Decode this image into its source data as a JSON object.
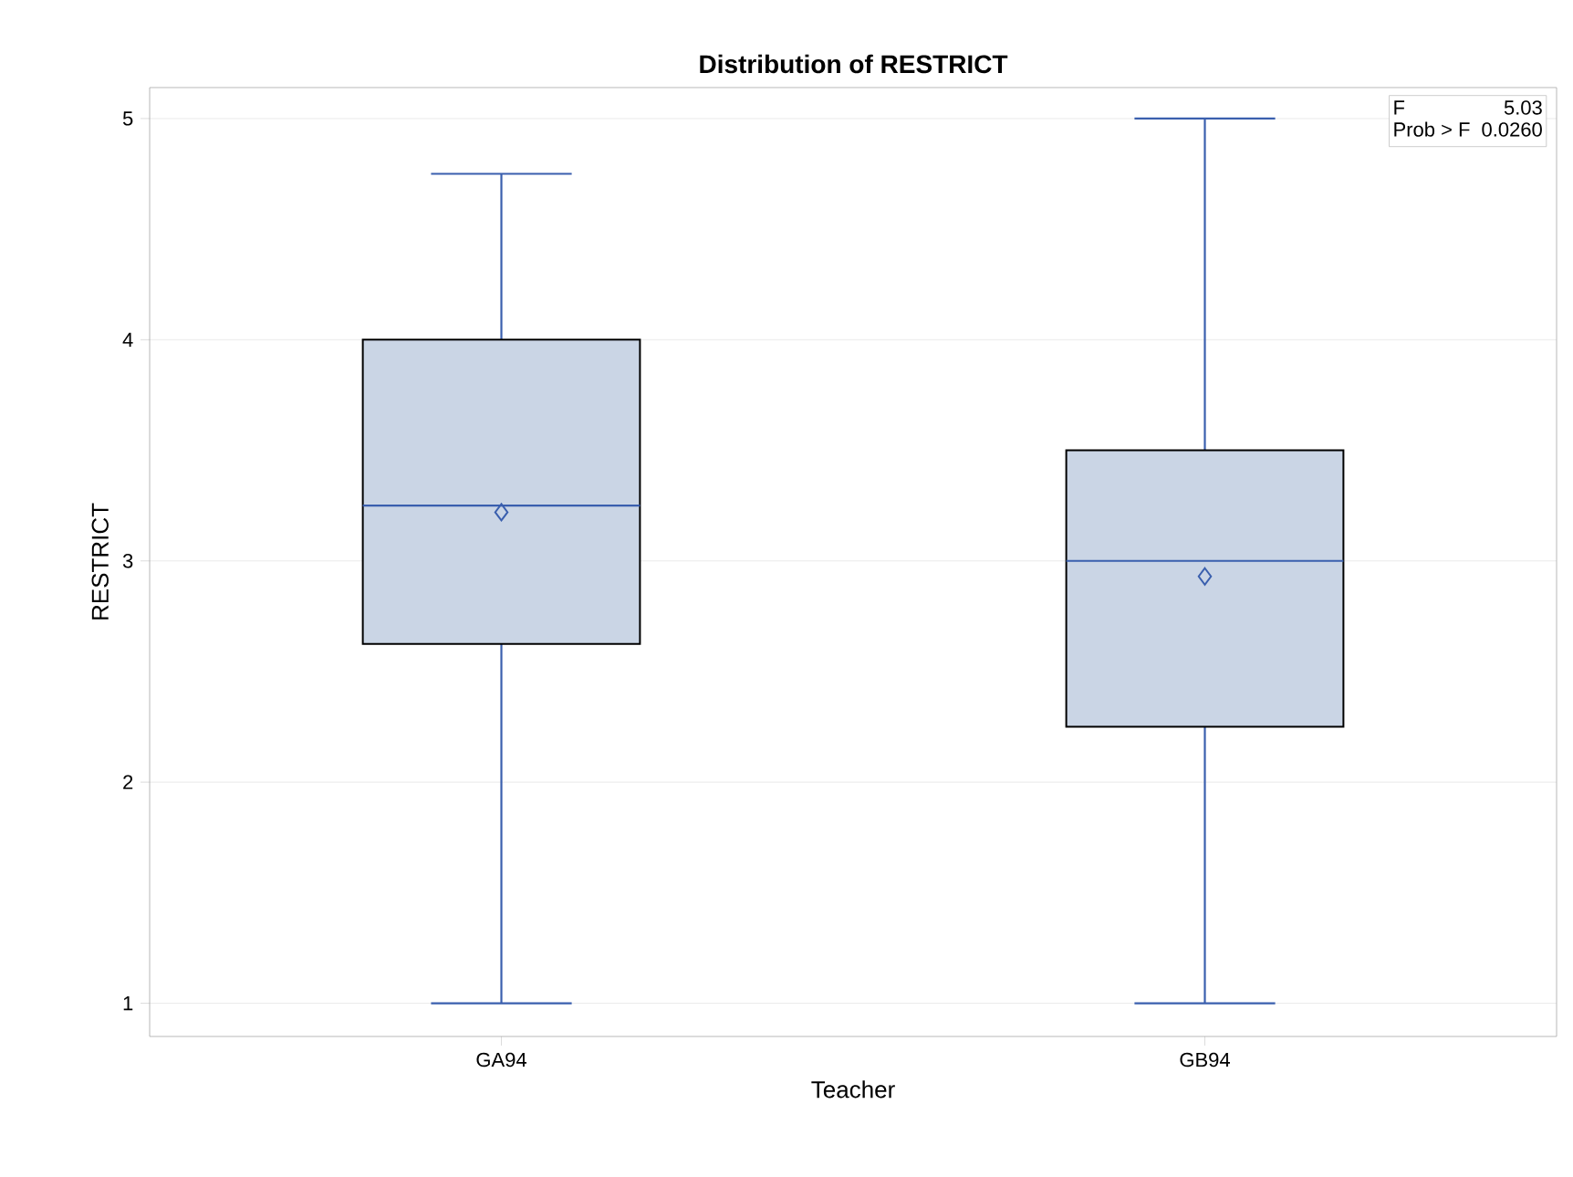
{
  "chart_data": {
    "type": "box",
    "title": "Distribution of RESTRICT",
    "xlabel": "Teacher",
    "ylabel": "RESTRICT",
    "categories": [
      "GA94",
      "GB94"
    ],
    "boxes": [
      {
        "low": 1,
        "q1": 2.625,
        "median": 3.25,
        "q3": 4,
        "high": 4.75,
        "mean": 3.22
      },
      {
        "low": 1,
        "q1": 2.25,
        "median": 3,
        "q3": 3.5,
        "high": 5,
        "mean": 2.93
      }
    ],
    "color": "#cad5e5",
    "ylim": [
      0.85,
      5.14
    ],
    "yticks": [
      1,
      2,
      3,
      4,
      5
    ],
    "grid": "y",
    "annotations": [
      "F",
      "5.03",
      "Prob > F",
      "0.0260"
    ]
  }
}
